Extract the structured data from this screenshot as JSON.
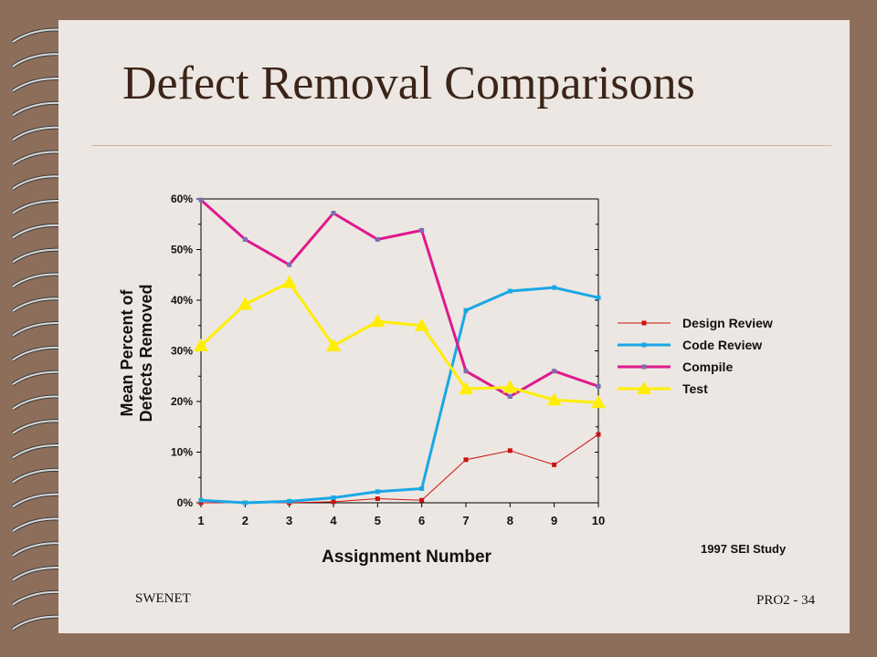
{
  "slide": {
    "title": "Defect Removal Comparisons",
    "footer_left": "SWENET",
    "footer_right": "PRO2 - 34",
    "source": "1997 SEI Study"
  },
  "colors": {
    "background": "#8d6e5b",
    "page": "#ece7e2",
    "title": "#3b2418"
  },
  "chart_data": {
    "type": "line",
    "title": "",
    "xlabel": "Assignment Number",
    "ylabel_lines": [
      "Mean Percent of",
      "Defects Removed"
    ],
    "x": [
      1,
      2,
      3,
      4,
      5,
      6,
      7,
      8,
      9,
      10
    ],
    "ylim": [
      0,
      60
    ],
    "y_ticks": [
      "0%",
      "10%",
      "20%",
      "30%",
      "40%",
      "50%",
      "60%"
    ],
    "x_ticks": [
      "1",
      "2",
      "3",
      "4",
      "5",
      "6",
      "7",
      "8",
      "9",
      "10"
    ],
    "grid": false,
    "legend_position": "right",
    "series": [
      {
        "name": "Design Review",
        "color": "#cc1111",
        "marker": "square",
        "values": [
          0,
          0,
          0,
          0.2,
          0.8,
          0.5,
          8.5,
          10.3,
          7.5,
          13.5
        ]
      },
      {
        "name": "Code Review",
        "color": "#1aa7e6",
        "marker": "square",
        "values": [
          0.5,
          0,
          0.3,
          1,
          2.2,
          2.8,
          38,
          41.8,
          42.5,
          40.5
        ]
      },
      {
        "name": "Compile",
        "color": "#e0198c",
        "marker": "square",
        "values": [
          59.8,
          52,
          47,
          57.2,
          52,
          53.8,
          26,
          21,
          26,
          23
        ]
      },
      {
        "name": "Test",
        "color": "#ffee00",
        "marker": "triangle",
        "values": [
          31,
          39.2,
          43.5,
          31,
          35.8,
          35,
          22.5,
          22.8,
          20.3,
          19.8
        ]
      }
    ]
  }
}
